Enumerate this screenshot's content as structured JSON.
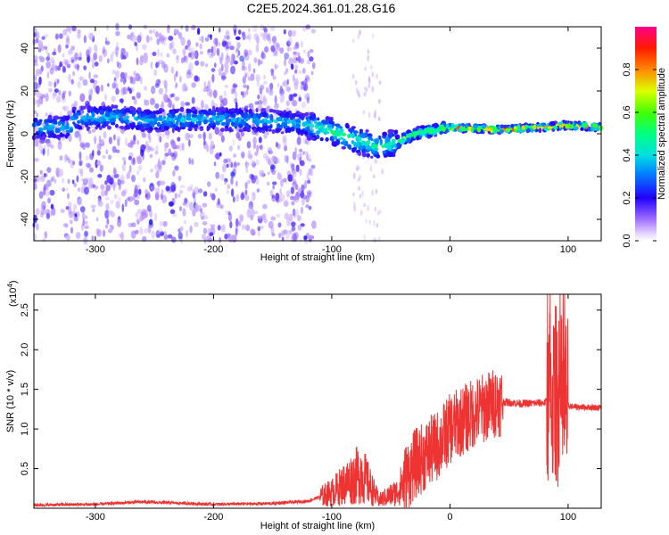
{
  "chart_data": [
    {
      "type": "heatmap",
      "title": "C2E5.2024.361.01.28.G16",
      "xlabel": "Height of straight line (km)",
      "ylabel": "Frequency (Hz)",
      "xlim": [
        -352,
        128
      ],
      "ylim": [
        -50,
        50
      ],
      "xticks": [
        -300,
        -200,
        -100,
        0,
        100
      ],
      "yticks": [
        -40,
        -20,
        0,
        20,
        40
      ],
      "colorbar": {
        "label": "Normalized spectral amplitude",
        "range": [
          0.0,
          1.0
        ],
        "ticks": [
          "0.0",
          "0.2",
          "0.4",
          "0.6",
          "0.8"
        ]
      },
      "ridge": [
        {
          "x": -320,
          "y": 7
        },
        {
          "x": -280,
          "y": 8
        },
        {
          "x": -255,
          "y": 6
        },
        {
          "x": -210,
          "y": 7
        },
        {
          "x": -150,
          "y": 6
        },
        {
          "x": -120,
          "y": 4
        },
        {
          "x": -100,
          "y": 1
        },
        {
          "x": -80,
          "y": -3
        },
        {
          "x": -60,
          "y": -6
        },
        {
          "x": -45,
          "y": -4
        },
        {
          "x": -30,
          "y": 0
        },
        {
          "x": -10,
          "y": 2
        },
        {
          "x": 0,
          "y": 3
        },
        {
          "x": 40,
          "y": 2
        },
        {
          "x": 80,
          "y": 3
        },
        {
          "x": 95,
          "y": 4
        },
        {
          "x": 128,
          "y": 3
        }
      ],
      "grid": false
    },
    {
      "type": "line",
      "xlabel": "Height of straight line (km)",
      "ylabel": "SNR (10 * v/v)",
      "y_multiplier": "(x10",
      "y_multiplier_exp": "4",
      "y_multiplier_close": ")",
      "xlim": [
        -352,
        128
      ],
      "ylim": [
        0,
        2.7
      ],
      "xticks": [
        -300,
        -200,
        -100,
        0,
        100
      ],
      "yticks": [
        0.5,
        1.0,
        1.5,
        2.0,
        2.5
      ],
      "color": "#ee3333",
      "envelope": [
        {
          "x": -352,
          "y": 0.04
        },
        {
          "x": -300,
          "y": 0.05
        },
        {
          "x": -260,
          "y": 0.08
        },
        {
          "x": -200,
          "y": 0.05
        },
        {
          "x": -150,
          "y": 0.06
        },
        {
          "x": -120,
          "y": 0.09
        },
        {
          "x": -100,
          "y": 0.2
        },
        {
          "x": -85,
          "y": 0.35
        },
        {
          "x": -75,
          "y": 0.45
        },
        {
          "x": -60,
          "y": 0.1
        },
        {
          "x": -45,
          "y": 0.2
        },
        {
          "x": -30,
          "y": 0.55
        },
        {
          "x": -10,
          "y": 0.8
        },
        {
          "x": 0,
          "y": 1.0
        },
        {
          "x": 20,
          "y": 1.2
        },
        {
          "x": 40,
          "y": 1.35
        },
        {
          "x": 60,
          "y": 1.32
        },
        {
          "x": 80,
          "y": 1.33
        },
        {
          "x": 90,
          "y": 1.45
        },
        {
          "x": 95,
          "y": 1.3
        },
        {
          "x": 105,
          "y": 1.28
        },
        {
          "x": 128,
          "y": 1.27
        }
      ],
      "grid": false
    }
  ]
}
